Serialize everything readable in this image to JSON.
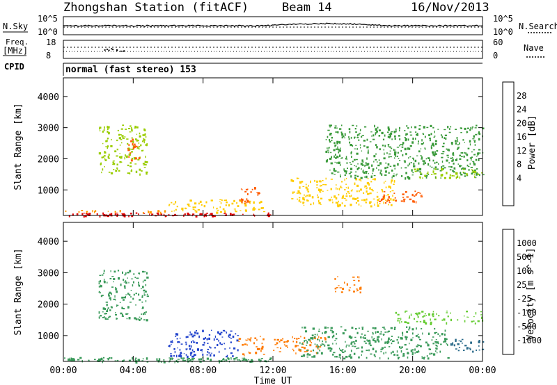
{
  "header": {
    "station": "Zhongshan Station (fitACF)",
    "beam": "Beam 14",
    "date": "16/Nov/2013"
  },
  "param_panel": {
    "nsky_label": "N.Sky",
    "nsky_ticks": [
      "10^5",
      "10^0"
    ],
    "nsearch_label": "N.Search",
    "nsearch_ticks": [
      "10^5",
      "10^0"
    ],
    "freq_label_1": "Freq.",
    "freq_label_2": "[MHz]",
    "freq_ticks": [
      "18",
      "8"
    ],
    "nave_label": "Nave",
    "nave_ticks": [
      "60",
      "0"
    ],
    "cpid_label": "CPID",
    "cpid_value": "normal (fast stereo) 153"
  },
  "power_colorbar": {
    "label": "Power [dB]",
    "tick_labels": [
      "28",
      "24",
      "20",
      "16",
      "12",
      "8",
      "4"
    ],
    "colors": [
      "#e00000",
      "#ff5a00",
      "#ff9900",
      "#ffcc00",
      "#99cc00",
      "#3a9a3a",
      "#2a7a6a",
      "#2a5ab0",
      "#0000ff"
    ]
  },
  "velocity_colorbar": {
    "label": "Velocity [m s^-1]",
    "tick_labels": [
      "1000",
      "500",
      "100",
      "25",
      "-25",
      "-100",
      "-500",
      "-1000"
    ],
    "colors": [
      "#2244cc",
      "#2a6a8a",
      "#3a9a5a",
      "#66cc33",
      "#c0c0c0",
      "#ffaa00",
      "#ff7a00",
      "#ff3a00",
      "#e00000"
    ]
  },
  "chart_data": [
    {
      "type": "heatmap",
      "panel": "power",
      "ylabel": "Slant Range [km]",
      "xlabel": "Time UT",
      "x_ticks": [
        "00:00",
        "04:00",
        "08:00",
        "12:00",
        "16:00",
        "20:00",
        "00:00"
      ],
      "y_ticks": [
        1000,
        2000,
        3000,
        4000
      ],
      "xlim": [
        0,
        24
      ],
      "ylim": [
        180,
        4600
      ],
      "colorscale": "Power [dB]",
      "scatter_regions": [
        {
          "t0": 0.0,
          "t1": 12.0,
          "r0": 180,
          "r1": 280,
          "value": 28
        },
        {
          "t0": 0.0,
          "t1": 6.0,
          "r0": 280,
          "r1": 360,
          "value": 20
        },
        {
          "t0": 6.0,
          "t1": 11.5,
          "r0": 300,
          "r1": 700,
          "value": 16
        },
        {
          "t0": 2.0,
          "t1": 4.8,
          "r0": 1500,
          "r1": 3100,
          "value": 12
        },
        {
          "t0": 3.6,
          "t1": 4.3,
          "r0": 1900,
          "r1": 2700,
          "value": 24
        },
        {
          "t0": 10.0,
          "t1": 11.2,
          "r0": 550,
          "r1": 1100,
          "value": 24
        },
        {
          "t0": 13.0,
          "t1": 19.0,
          "r0": 500,
          "r1": 1400,
          "value": 16
        },
        {
          "t0": 18.0,
          "t1": 20.5,
          "r0": 600,
          "r1": 1000,
          "value": 24
        },
        {
          "t0": 15.0,
          "t1": 24.0,
          "r0": 1400,
          "r1": 3100,
          "value": 8
        },
        {
          "t0": 20.0,
          "t1": 24.0,
          "r0": 1400,
          "r1": 1700,
          "value": 12
        }
      ]
    },
    {
      "type": "heatmap",
      "panel": "velocity",
      "ylabel": "Slant Range [km]",
      "xlabel": "Time UT",
      "x_ticks": [
        "00:00",
        "04:00",
        "08:00",
        "12:00",
        "16:00",
        "20:00",
        "00:00"
      ],
      "y_ticks": [
        1000,
        2000,
        3000,
        4000
      ],
      "xlim": [
        0,
        24
      ],
      "ylim": [
        180,
        4600
      ],
      "colorscale": "Velocity [m s^-1]",
      "scatter_regions": [
        {
          "t0": 0.0,
          "t1": 12.0,
          "r0": 180,
          "r1": 320,
          "value": 100
        },
        {
          "t0": 2.0,
          "t1": 4.8,
          "r0": 1500,
          "r1": 3100,
          "value": 100
        },
        {
          "t0": 6.0,
          "t1": 10.0,
          "r0": 350,
          "r1": 1200,
          "value": 1000
        },
        {
          "t0": 10.0,
          "t1": 11.5,
          "r0": 400,
          "r1": 1000,
          "value": -500
        },
        {
          "t0": 12.0,
          "t1": 15.0,
          "r0": 450,
          "r1": 1000,
          "value": -500
        },
        {
          "t0": 13.5,
          "t1": 22.0,
          "r0": 300,
          "r1": 1300,
          "value": 100
        },
        {
          "t0": 15.5,
          "t1": 17.0,
          "r0": 2400,
          "r1": 2900,
          "value": -500
        },
        {
          "t0": 19.0,
          "t1": 24.0,
          "r0": 1400,
          "r1": 1800,
          "value": 25
        },
        {
          "t0": 22.0,
          "t1": 24.0,
          "r0": 500,
          "r1": 900,
          "value": 500
        }
      ]
    }
  ]
}
